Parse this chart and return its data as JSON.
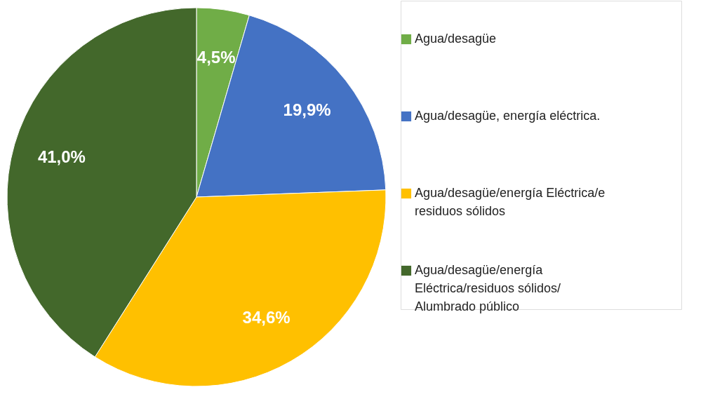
{
  "chart_data": {
    "type": "pie",
    "categories": [
      "Agua/desagüe",
      "Agua/desagüe, energía eléctrica.",
      "Agua/desagüe/energía Eléctrica/e residuos sólidos",
      "Agua/desagüe/energía Eléctrica/residuos sólidos/ Alumbrado público"
    ],
    "values": [
      4.5,
      19.9,
      34.6,
      41.0
    ],
    "colors": [
      "#70ad47",
      "#4472c4",
      "#ffc000",
      "#43682b"
    ],
    "value_labels": [
      "4,5%",
      "19,9%",
      "34,6%",
      "41,0%"
    ],
    "legend": "right"
  }
}
